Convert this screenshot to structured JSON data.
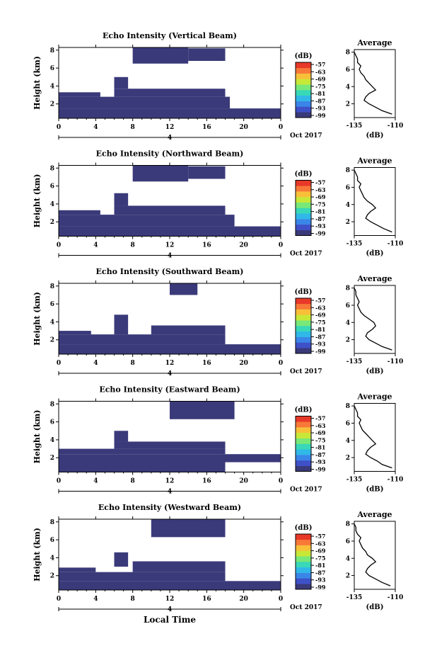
{
  "figure": {
    "bottom_xlabel": "Local Time",
    "date_note": "Oct 2017",
    "day_marker": "4"
  },
  "colors": {
    "echo": "#3a3a7a",
    "colorbar": [
      "#3a3a7a",
      "#3f51c8",
      "#3a86e8",
      "#2fb8e8",
      "#38d8b8",
      "#78e878",
      "#c8e838",
      "#f8c038",
      "#f87838",
      "#e83828"
    ],
    "axis": "#000000"
  },
  "chart_data": [
    {
      "type": "heatmap",
      "title": "Echo Intensity (Vertical Beam)",
      "ylabel": "Height (km)",
      "xlabel": "",
      "x_ticks": [
        "0",
        "4",
        "8",
        "12",
        "16",
        "20",
        "0"
      ],
      "x_range": [
        0,
        24
      ],
      "y_ticks": [
        "2",
        "4",
        "6",
        "8"
      ],
      "y_range": [
        0.4,
        8.3
      ],
      "colorbar": {
        "label": "(dB)",
        "ticks": [
          "-57",
          "-63",
          "-69",
          "-75",
          "-81",
          "-87",
          "-93",
          "-99"
        ]
      },
      "echo_cells": [
        {
          "t": [
            0,
            24
          ],
          "h": [
            0.4,
            1.5
          ]
        },
        {
          "t": [
            0,
            18.5
          ],
          "h": [
            1.5,
            2.8
          ]
        },
        {
          "t": [
            0,
            4.5
          ],
          "h": [
            2.8,
            3.3
          ]
        },
        {
          "t": [
            6,
            18
          ],
          "h": [
            2.8,
            3.7
          ]
        },
        {
          "t": [
            6,
            7.5
          ],
          "h": [
            3.7,
            5.0
          ]
        },
        {
          "t": [
            8,
            14
          ],
          "h": [
            6.5,
            8.3
          ]
        },
        {
          "t": [
            14,
            18
          ],
          "h": [
            6.8,
            8.2
          ]
        }
      ],
      "average": {
        "title": "Average",
        "xlabel": "(dB)",
        "x_ticks": [
          "-135",
          "-110"
        ],
        "xlim": [
          -135,
          -110
        ],
        "y_ticks": [
          "2",
          "4",
          "6",
          "8"
        ],
        "ylim": [
          0.4,
          8.3
        ],
        "height": [
          0.8,
          1.2,
          1.6,
          2.0,
          2.4,
          2.8,
          3.2,
          3.6,
          4.0,
          4.4,
          4.8,
          5.2,
          5.6,
          6.0,
          6.4,
          6.8,
          7.2,
          7.6,
          8.0
        ],
        "db": [
          -112,
          -118,
          -122,
          -126,
          -129,
          -128,
          -126,
          -122,
          -124,
          -126,
          -128,
          -129,
          -131,
          -132,
          -131,
          -133,
          -133,
          -134,
          -135
        ]
      }
    },
    {
      "type": "heatmap",
      "title": "Echo Intensity (Northward Beam)",
      "ylabel": "Height (km)",
      "xlabel": "",
      "x_ticks": [
        "0",
        "4",
        "8",
        "12",
        "16",
        "20",
        "0"
      ],
      "x_range": [
        0,
        24
      ],
      "y_ticks": [
        "2",
        "4",
        "6",
        "8"
      ],
      "y_range": [
        0.4,
        8.3
      ],
      "colorbar": {
        "label": "(dB)",
        "ticks": [
          "-57",
          "-63",
          "-69",
          "-75",
          "-81",
          "-87",
          "-93",
          "-99"
        ]
      },
      "echo_cells": [
        {
          "t": [
            0,
            24
          ],
          "h": [
            0.4,
            1.5
          ]
        },
        {
          "t": [
            0,
            19
          ],
          "h": [
            1.5,
            2.8
          ]
        },
        {
          "t": [
            0,
            4.5
          ],
          "h": [
            2.8,
            3.3
          ]
        },
        {
          "t": [
            6,
            18
          ],
          "h": [
            2.8,
            3.8
          ]
        },
        {
          "t": [
            6,
            7.5
          ],
          "h": [
            3.8,
            5.2
          ]
        },
        {
          "t": [
            8,
            14
          ],
          "h": [
            6.5,
            8.3
          ]
        },
        {
          "t": [
            14,
            18
          ],
          "h": [
            6.8,
            8.2
          ]
        }
      ],
      "average": {
        "title": "Average",
        "xlabel": "(dB)",
        "x_ticks": [
          "-135",
          "-110"
        ],
        "xlim": [
          -135,
          -110
        ],
        "y_ticks": [
          "2",
          "4",
          "6",
          "8"
        ],
        "ylim": [
          0.4,
          8.3
        ],
        "height": [
          0.8,
          1.2,
          1.6,
          2.0,
          2.4,
          2.8,
          3.2,
          3.6,
          4.0,
          4.4,
          4.8,
          5.2,
          5.6,
          6.0,
          6.4,
          6.8,
          7.2,
          7.6,
          8.0
        ],
        "db": [
          -112,
          -117,
          -121,
          -125,
          -128,
          -127,
          -125,
          -122,
          -124,
          -127,
          -129,
          -130,
          -131,
          -132,
          -131,
          -133,
          -133,
          -134,
          -135
        ]
      }
    },
    {
      "type": "heatmap",
      "title": "Echo Intensity (Southward Beam)",
      "ylabel": "Height (km)",
      "xlabel": "",
      "x_ticks": [
        "0",
        "4",
        "8",
        "12",
        "16",
        "20",
        "0"
      ],
      "x_range": [
        0,
        24
      ],
      "y_ticks": [
        "2",
        "4",
        "6",
        "8"
      ],
      "y_range": [
        0.4,
        8.3
      ],
      "colorbar": {
        "label": "(dB)",
        "ticks": [
          "-57",
          "-63",
          "-69",
          "-75",
          "-81",
          "-87",
          "-93",
          "-99"
        ]
      },
      "echo_cells": [
        {
          "t": [
            0,
            24
          ],
          "h": [
            0.4,
            1.5
          ]
        },
        {
          "t": [
            0,
            18
          ],
          "h": [
            1.5,
            2.6
          ]
        },
        {
          "t": [
            0,
            3.5
          ],
          "h": [
            2.6,
            3.0
          ]
        },
        {
          "t": [
            10,
            18
          ],
          "h": [
            2.6,
            3.6
          ]
        },
        {
          "t": [
            6,
            7.5
          ],
          "h": [
            2.6,
            4.8
          ]
        },
        {
          "t": [
            12,
            15
          ],
          "h": [
            7.0,
            8.3
          ]
        }
      ],
      "average": {
        "title": "Average",
        "xlabel": "(dB)",
        "x_ticks": [
          "-135",
          "-110"
        ],
        "xlim": [
          -135,
          -110
        ],
        "y_ticks": [
          "2",
          "4",
          "6",
          "8"
        ],
        "ylim": [
          0.4,
          8.3
        ],
        "height": [
          0.8,
          1.2,
          1.6,
          2.0,
          2.4,
          2.8,
          3.2,
          3.6,
          4.0,
          4.4,
          4.8,
          5.2,
          5.6,
          6.0,
          6.4,
          6.8,
          7.2,
          7.6,
          8.0
        ],
        "db": [
          -112,
          -118,
          -122,
          -126,
          -128,
          -127,
          -124,
          -122,
          -123,
          -126,
          -129,
          -131,
          -132,
          -133,
          -132,
          -133,
          -134,
          -134,
          -135
        ]
      }
    },
    {
      "type": "heatmap",
      "title": "Echo Intensity (Eastward Beam)",
      "ylabel": "Height (km)",
      "xlabel": "",
      "x_ticks": [
        "0",
        "4",
        "8",
        "12",
        "16",
        "20",
        "0"
      ],
      "x_range": [
        0,
        24
      ],
      "y_ticks": [
        "2",
        "4",
        "6",
        "8"
      ],
      "y_range": [
        0.4,
        8.3
      ],
      "colorbar": {
        "label": "(dB)",
        "ticks": [
          "-57",
          "-63",
          "-69",
          "-75",
          "-81",
          "-87",
          "-93",
          "-99"
        ]
      },
      "echo_cells": [
        {
          "t": [
            0,
            18
          ],
          "h": [
            0.4,
            2.4
          ]
        },
        {
          "t": [
            18,
            24
          ],
          "h": [
            1.5,
            2.4
          ]
        },
        {
          "t": [
            0,
            18
          ],
          "h": [
            2.4,
            3.0
          ]
        },
        {
          "t": [
            6,
            18
          ],
          "h": [
            3.0,
            3.8
          ]
        },
        {
          "t": [
            6,
            7.5
          ],
          "h": [
            3.8,
            5.0
          ]
        },
        {
          "t": [
            12,
            19
          ],
          "h": [
            6.3,
            8.3
          ]
        }
      ],
      "average": {
        "title": "Average",
        "xlabel": "(dB)",
        "x_ticks": [
          "-135",
          "-110"
        ],
        "xlim": [
          -135,
          -110
        ],
        "y_ticks": [
          "2",
          "4",
          "6",
          "8"
        ],
        "ylim": [
          0.4,
          8.3
        ],
        "height": [
          0.8,
          1.2,
          1.6,
          2.0,
          2.4,
          2.8,
          3.2,
          3.6,
          4.0,
          4.4,
          4.8,
          5.2,
          5.6,
          6.0,
          6.4,
          6.8,
          7.2,
          7.6,
          8.0
        ],
        "db": [
          -112,
          -118,
          -121,
          -125,
          -128,
          -127,
          -125,
          -122,
          -124,
          -126,
          -128,
          -130,
          -131,
          -132,
          -131,
          -133,
          -133,
          -134,
          -135
        ]
      }
    },
    {
      "type": "heatmap",
      "title": "Echo Intensity (Westward Beam)",
      "ylabel": "Height (km)",
      "xlabel": "",
      "x_ticks": [
        "0",
        "4",
        "8",
        "12",
        "16",
        "20",
        "0"
      ],
      "x_range": [
        0,
        24
      ],
      "y_ticks": [
        "2",
        "4",
        "6",
        "8"
      ],
      "y_range": [
        0.4,
        8.3
      ],
      "colorbar": {
        "label": "(dB)",
        "ticks": [
          "-57",
          "-63",
          "-69",
          "-75",
          "-81",
          "-87",
          "-93",
          "-99"
        ]
      },
      "echo_cells": [
        {
          "t": [
            0,
            24
          ],
          "h": [
            0.4,
            1.4
          ]
        },
        {
          "t": [
            0,
            18
          ],
          "h": [
            1.4,
            2.4
          ]
        },
        {
          "t": [
            0,
            4
          ],
          "h": [
            2.4,
            2.9
          ]
        },
        {
          "t": [
            8,
            18
          ],
          "h": [
            2.4,
            3.6
          ]
        },
        {
          "t": [
            6,
            7.5
          ],
          "h": [
            3.0,
            4.6
          ]
        },
        {
          "t": [
            10,
            18
          ],
          "h": [
            6.3,
            8.3
          ]
        }
      ],
      "average": {
        "title": "Average",
        "xlabel": "(dB)",
        "x_ticks": [
          "-135",
          "-110"
        ],
        "xlim": [
          -135,
          -110
        ],
        "y_ticks": [
          "2",
          "4",
          "6",
          "8"
        ],
        "ylim": [
          0.4,
          8.3
        ],
        "height": [
          0.8,
          1.2,
          1.6,
          2.0,
          2.4,
          2.8,
          3.2,
          3.6,
          4.0,
          4.4,
          4.8,
          5.2,
          5.6,
          6.0,
          6.4,
          6.8,
          7.2,
          7.6,
          8.0
        ],
        "db": [
          -113,
          -118,
          -122,
          -126,
          -128,
          -127,
          -125,
          -122,
          -124,
          -127,
          -128,
          -130,
          -131,
          -132,
          -131,
          -133,
          -134,
          -134,
          -135
        ]
      }
    }
  ]
}
